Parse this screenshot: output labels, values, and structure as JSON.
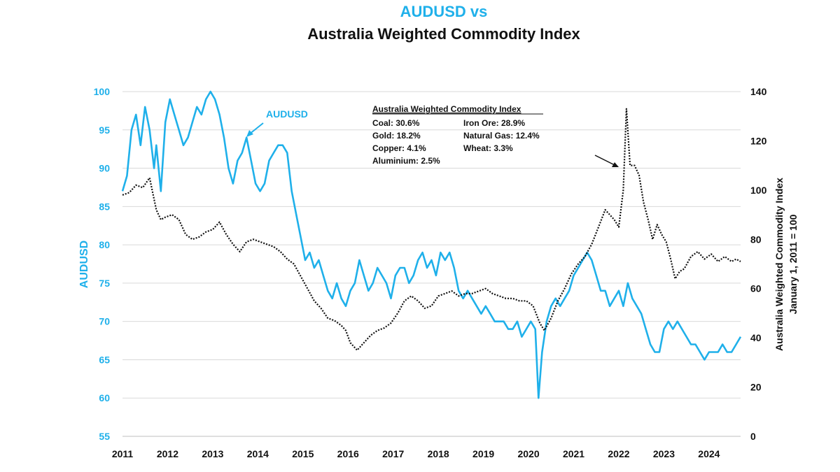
{
  "chart_data": {
    "type": "line",
    "title_line1": "AUDUSD vs",
    "title_line2": "Australia Weighted Commodity Index",
    "x_ticks": [
      "2011",
      "2012",
      "2013",
      "2014",
      "2015",
      "2016",
      "2017",
      "2018",
      "2019",
      "2020",
      "2021",
      "2022",
      "2023",
      "2024"
    ],
    "xlim": [
      2011,
      2024.7
    ],
    "y_left": {
      "label": "AUDUSD",
      "ticks": [
        55,
        60,
        65,
        70,
        75,
        80,
        85,
        90,
        95,
        100
      ],
      "ylim": [
        55,
        100
      ]
    },
    "y_right": {
      "label_line1": "Australia Weighted Commodity Index",
      "label_line2": "January 1, 2011 = 100",
      "ticks": [
        0,
        20,
        40,
        60,
        80,
        100,
        120,
        140
      ],
      "ylim": [
        0,
        140
      ]
    },
    "grid": "horizontal",
    "series": [
      {
        "name": "AUDUSD",
        "axis": "left",
        "color": "#1fb0ea",
        "style": "solid",
        "x": [
          2011.0,
          2011.1,
          2011.2,
          2011.3,
          2011.4,
          2011.5,
          2011.6,
          2011.7,
          2011.75,
          2011.85,
          2011.95,
          2012.05,
          2012.15,
          2012.25,
          2012.35,
          2012.45,
          2012.55,
          2012.65,
          2012.75,
          2012.85,
          2012.95,
          2013.05,
          2013.15,
          2013.25,
          2013.35,
          2013.45,
          2013.55,
          2013.65,
          2013.75,
          2013.85,
          2013.95,
          2014.05,
          2014.15,
          2014.25,
          2014.35,
          2014.45,
          2014.55,
          2014.65,
          2014.75,
          2014.85,
          2014.95,
          2015.05,
          2015.15,
          2015.25,
          2015.35,
          2015.45,
          2015.55,
          2015.65,
          2015.75,
          2015.85,
          2015.95,
          2016.05,
          2016.15,
          2016.25,
          2016.35,
          2016.45,
          2016.55,
          2016.65,
          2016.75,
          2016.85,
          2016.95,
          2017.05,
          2017.15,
          2017.25,
          2017.35,
          2017.45,
          2017.55,
          2017.65,
          2017.75,
          2017.85,
          2017.95,
          2018.05,
          2018.15,
          2018.25,
          2018.35,
          2018.45,
          2018.55,
          2018.65,
          2018.75,
          2018.85,
          2018.95,
          2019.05,
          2019.15,
          2019.25,
          2019.35,
          2019.45,
          2019.55,
          2019.65,
          2019.75,
          2019.85,
          2019.95,
          2020.05,
          2020.15,
          2020.22,
          2020.3,
          2020.4,
          2020.5,
          2020.6,
          2020.7,
          2020.8,
          2020.9,
          2021.0,
          2021.1,
          2021.2,
          2021.3,
          2021.4,
          2021.5,
          2021.6,
          2021.7,
          2021.8,
          2021.9,
          2022.0,
          2022.1,
          2022.2,
          2022.3,
          2022.4,
          2022.5,
          2022.6,
          2022.7,
          2022.8,
          2022.9,
          2023.0,
          2023.1,
          2023.2,
          2023.3,
          2023.4,
          2023.5,
          2023.6,
          2023.7,
          2023.8,
          2023.9,
          2024.0,
          2024.1,
          2024.2,
          2024.3,
          2024.4,
          2024.5,
          2024.6,
          2024.7
        ],
        "values": [
          87,
          89,
          95,
          97,
          93,
          98,
          95,
          90,
          93,
          87,
          96,
          99,
          97,
          95,
          93,
          94,
          96,
          98,
          97,
          99,
          100,
          99,
          97,
          94,
          90,
          88,
          91,
          92,
          94,
          91,
          88,
          87,
          88,
          91,
          92,
          93,
          93,
          92,
          87,
          84,
          81,
          78,
          79,
          77,
          78,
          76,
          74,
          73,
          75,
          73,
          72,
          74,
          75,
          78,
          76,
          74,
          75,
          77,
          76,
          75,
          73,
          76,
          77,
          77,
          75,
          76,
          78,
          79,
          77,
          78,
          76,
          79,
          78,
          79,
          77,
          74,
          73,
          74,
          73,
          72,
          71,
          72,
          71,
          70,
          70,
          70,
          69,
          69,
          70,
          68,
          69,
          70,
          69,
          60,
          66,
          70,
          72,
          73,
          72,
          73,
          74,
          76,
          77,
          78,
          79,
          78,
          76,
          74,
          74,
          72,
          73,
          74,
          72,
          75,
          73,
          72,
          71,
          69,
          67,
          66,
          66,
          69,
          70,
          69,
          70,
          69,
          68,
          67,
          67,
          66,
          65,
          66,
          66,
          66,
          67,
          66,
          66,
          67,
          68
        ]
      },
      {
        "name": "Australia Weighted Commodity Index",
        "axis": "right",
        "color": "#111111",
        "style": "dotted",
        "x": [
          2011.0,
          2011.15,
          2011.3,
          2011.45,
          2011.6,
          2011.75,
          2011.85,
          2011.95,
          2012.1,
          2012.25,
          2012.4,
          2012.55,
          2012.7,
          2012.85,
          2013.0,
          2013.15,
          2013.3,
          2013.45,
          2013.6,
          2013.75,
          2013.9,
          2014.05,
          2014.2,
          2014.35,
          2014.5,
          2014.65,
          2014.8,
          2014.95,
          2015.1,
          2015.25,
          2015.4,
          2015.55,
          2015.7,
          2015.85,
          2015.95,
          2016.05,
          2016.2,
          2016.35,
          2016.5,
          2016.65,
          2016.8,
          2016.95,
          2017.1,
          2017.25,
          2017.4,
          2017.55,
          2017.7,
          2017.85,
          2018.0,
          2018.15,
          2018.3,
          2018.45,
          2018.6,
          2018.75,
          2018.9,
          2019.05,
          2019.2,
          2019.35,
          2019.5,
          2019.65,
          2019.8,
          2019.95,
          2020.1,
          2020.25,
          2020.35,
          2020.5,
          2020.65,
          2020.8,
          2020.95,
          2021.1,
          2021.25,
          2021.4,
          2021.55,
          2021.7,
          2021.8,
          2021.9,
          2022.0,
          2022.1,
          2022.17,
          2022.25,
          2022.35,
          2022.45,
          2022.55,
          2022.65,
          2022.75,
          2022.85,
          2022.95,
          2023.05,
          2023.15,
          2023.25,
          2023.35,
          2023.45,
          2023.6,
          2023.75,
          2023.9,
          2024.05,
          2024.2,
          2024.35,
          2024.5,
          2024.6,
          2024.7
        ],
        "values": [
          98,
          99,
          102,
          101,
          105,
          92,
          88,
          89,
          90,
          88,
          82,
          80,
          81,
          83,
          84,
          87,
          82,
          78,
          75,
          79,
          80,
          79,
          78,
          77,
          75,
          72,
          70,
          65,
          60,
          55,
          52,
          48,
          47,
          45,
          43,
          38,
          35,
          38,
          41,
          43,
          44,
          46,
          50,
          55,
          57,
          55,
          52,
          53,
          57,
          58,
          59,
          57,
          58,
          58,
          59,
          60,
          58,
          57,
          56,
          56,
          55,
          55,
          53,
          46,
          43,
          48,
          55,
          60,
          66,
          70,
          73,
          78,
          85,
          92,
          90,
          88,
          85,
          100,
          133,
          110,
          110,
          106,
          95,
          88,
          80,
          86,
          82,
          79,
          72,
          64,
          67,
          68,
          73,
          75,
          72,
          74,
          71,
          73,
          71,
          72,
          71
        ]
      }
    ],
    "annotations": {
      "audusd_label": "AUDUSD",
      "box_title": "Australia Weighted Commodity Index",
      "box_items": [
        "Coal: 30.6%",
        "Iron Ore: 28.9%",
        "Gold: 18.2%",
        "Natural Gas: 12.4%",
        "Copper: 4.1%",
        "Wheat: 3.3%",
        "Aluminium: 2.5%"
      ]
    }
  }
}
